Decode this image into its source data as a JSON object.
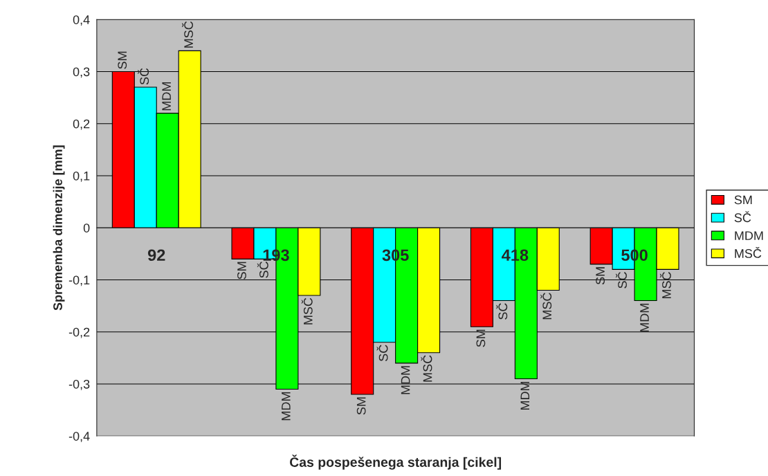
{
  "chart_data": {
    "type": "bar",
    "xlabel": "Čas pospešenega staranja [cikel]",
    "ylabel": "Sprememba dimenzije [mm]",
    "categories": [
      "92",
      "193",
      "305",
      "418",
      "500"
    ],
    "series": [
      {
        "name": "SM",
        "color": "#ff0000",
        "values": [
          0.3,
          -0.06,
          -0.32,
          -0.19,
          -0.07
        ],
        "value_labels": [
          "SM",
          "SM",
          "SM",
          "SM",
          "SM"
        ]
      },
      {
        "name": "SČ",
        "color": "#00ffff",
        "values": [
          0.27,
          -0.06,
          -0.22,
          -0.14,
          -0.08
        ],
        "value_labels": [
          "SČ",
          "SČ",
          "SČ",
          "SČ",
          "SČ"
        ]
      },
      {
        "name": "MDM",
        "color": "#00ff00",
        "values": [
          0.22,
          -0.31,
          -0.26,
          -0.29,
          -0.14
        ],
        "value_labels": [
          "MDM",
          "MDM",
          "MDM",
          "MDM",
          "MDM"
        ]
      },
      {
        "name": "MSČ",
        "color": "#ffff00",
        "values": [
          0.34,
          -0.13,
          -0.24,
          -0.12,
          -0.08
        ],
        "value_labels": [
          "MSČ",
          "MSČ",
          "MSČ",
          "MSČ",
          "MSČ"
        ]
      }
    ],
    "ylim": [
      -0.4,
      0.4
    ],
    "yticks": [
      {
        "value": -0.4,
        "label": "-0,4"
      },
      {
        "value": -0.3,
        "label": "-0,3"
      },
      {
        "value": -0.2,
        "label": "-0,2"
      },
      {
        "value": -0.1,
        "label": "-0,1"
      },
      {
        "value": 0,
        "label": "0"
      },
      {
        "value": 0.1,
        "label": "0,1"
      },
      {
        "value": 0.2,
        "label": "0,2"
      },
      {
        "value": 0.3,
        "label": "0,3"
      },
      {
        "value": 0.4,
        "label": "0,4"
      }
    ],
    "grid": "y",
    "legend": "right"
  }
}
